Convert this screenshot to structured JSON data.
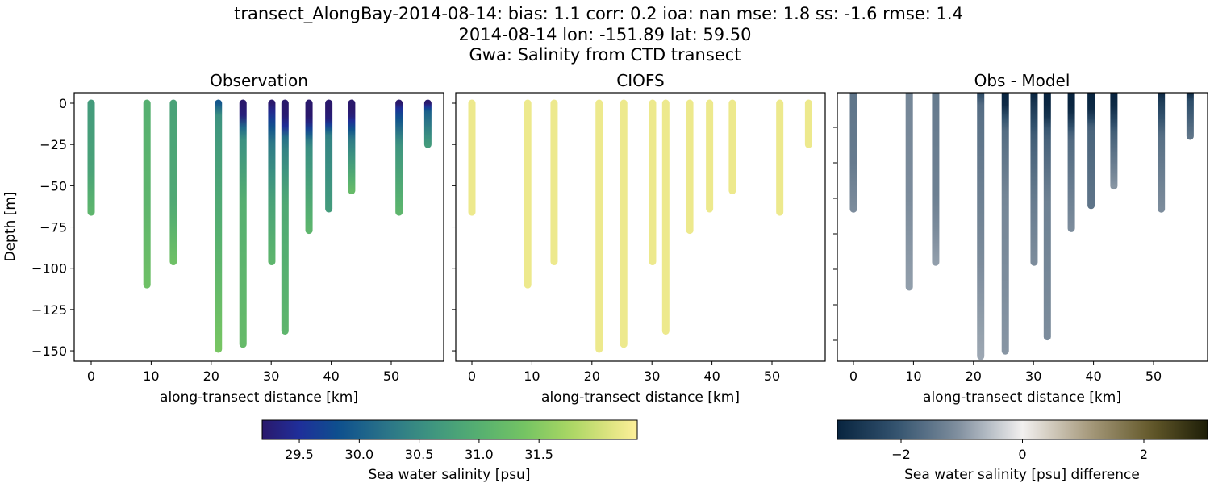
{
  "title_lines": [
    "transect_AlongBay-2014-08-14: bias: 1.1  corr: 0.2  ioa: nan  mse: 1.8  ss: -1.6  rmse: 1.4",
    "2014-08-14 lon: -151.89 lat: 59.50",
    "Gwa: Salinity from CTD transect"
  ],
  "chart_data": [
    {
      "type": "scatter",
      "title": "Observation",
      "xlabel": "along-transect distance [km]",
      "ylabel": "Depth [m]",
      "xticks": [
        "0",
        "10",
        "20",
        "30",
        "40",
        "50"
      ],
      "yticks": [
        "0",
        "−25",
        "−50",
        "−75",
        "−100",
        "−125",
        "−150"
      ],
      "xlim": [
        -2.8,
        59.0
      ],
      "ylim": [
        -156,
        6
      ],
      "colormap": "haline",
      "casts": [
        {
          "x": 0,
          "max_depth": 66,
          "salinity": [
            [
              0,
              30.7
            ],
            [
              40,
              30.8
            ],
            [
              66,
              31.1
            ]
          ]
        },
        {
          "x": 9.3,
          "max_depth": 110,
          "salinity": [
            [
              0,
              31.0
            ],
            [
              60,
              31.1
            ],
            [
              110,
              31.3
            ]
          ]
        },
        {
          "x": 13.7,
          "max_depth": 96,
          "salinity": [
            [
              0,
              30.8
            ],
            [
              60,
              30.9
            ],
            [
              96,
              31.3
            ]
          ]
        },
        {
          "x": 21.2,
          "max_depth": 149,
          "salinity": [
            [
              0,
              29.9
            ],
            [
              8,
              30.6
            ],
            [
              60,
              30.9
            ],
            [
              149,
              31.4
            ]
          ]
        },
        {
          "x": 25.3,
          "max_depth": 146,
          "salinity": [
            [
              0,
              29.1
            ],
            [
              8,
              29.3
            ],
            [
              18,
              30.5
            ],
            [
              60,
              31.0
            ],
            [
              146,
              31.2
            ]
          ]
        },
        {
          "x": 30.1,
          "max_depth": 96,
          "salinity": [
            [
              0,
              29.1
            ],
            [
              6,
              29.5
            ],
            [
              25,
              30.3
            ],
            [
              60,
              30.8
            ],
            [
              96,
              31.1
            ]
          ]
        },
        {
          "x": 32.3,
          "max_depth": 138,
          "salinity": [
            [
              0,
              29.1
            ],
            [
              12,
              29.3
            ],
            [
              22,
              30.3
            ],
            [
              60,
              30.9
            ],
            [
              138,
              31.1
            ]
          ]
        },
        {
          "x": 36.3,
          "max_depth": 77,
          "salinity": [
            [
              0,
              29.1
            ],
            [
              10,
              29.2
            ],
            [
              25,
              30.5
            ],
            [
              77,
              31.1
            ]
          ]
        },
        {
          "x": 39.6,
          "max_depth": 64,
          "salinity": [
            [
              0,
              29.1
            ],
            [
              10,
              29.3
            ],
            [
              20,
              30.4
            ],
            [
              64,
              30.7
            ]
          ]
        },
        {
          "x": 43.4,
          "max_depth": 53,
          "salinity": [
            [
              0,
              29.1
            ],
            [
              8,
              29.3
            ],
            [
              22,
              30.3
            ],
            [
              53,
              31.2
            ]
          ]
        },
        {
          "x": 51.3,
          "max_depth": 66,
          "salinity": [
            [
              0,
              29.1
            ],
            [
              4,
              29.6
            ],
            [
              25,
              30.6
            ],
            [
              66,
              31.1
            ]
          ]
        },
        {
          "x": 56.1,
          "max_depth": 25,
          "salinity": [
            [
              0,
              29.2
            ],
            [
              5,
              30.0
            ],
            [
              25,
              30.7
            ]
          ]
        }
      ]
    },
    {
      "type": "scatter",
      "title": "CIOFS",
      "xlabel": "along-transect distance [km]",
      "xticks": [
        "0",
        "10",
        "20",
        "30",
        "40",
        "50"
      ],
      "xlim": [
        -2.8,
        59.0
      ],
      "ylim": [
        -156,
        6
      ],
      "model_salinity": 32.2
    },
    {
      "type": "scatter",
      "title": "Obs - Model",
      "xlabel": "along-transect distance [km]",
      "xticks": [
        "0",
        "10",
        "20",
        "30",
        "40",
        "50"
      ],
      "colormap": "diff"
    }
  ],
  "colorbars": [
    {
      "label": "Sea water salinity [psu]",
      "ticks": [
        "29.5",
        "30.0",
        "30.5",
        "31.0",
        "31.5"
      ],
      "tick_values": [
        29.5,
        30.0,
        30.5,
        31.0,
        31.5
      ],
      "range": [
        29.19,
        32.32
      ]
    },
    {
      "label": "Sea water salinity [psu] difference",
      "ticks": [
        "−2",
        "0",
        "2"
      ],
      "tick_values": [
        -2,
        0,
        2
      ],
      "range": [
        -3.05,
        3.05
      ]
    }
  ]
}
